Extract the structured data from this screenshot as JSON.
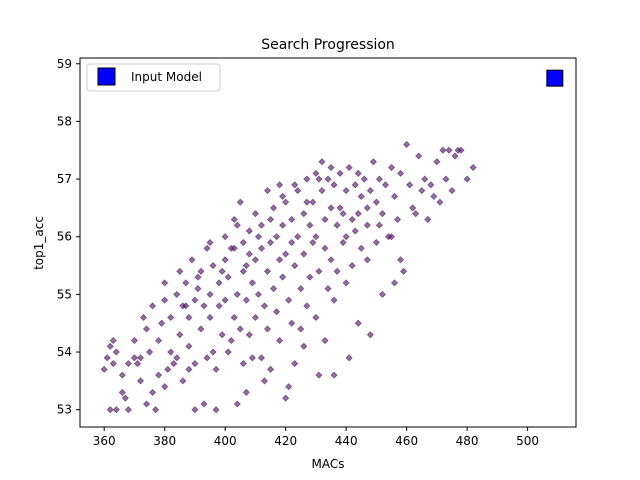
{
  "chart_data": {
    "type": "scatter",
    "title": "Search Progression",
    "xlabel": "MACs",
    "ylabel": "top1_acc",
    "xlim": [
      352,
      516
    ],
    "ylim": [
      52.7,
      59.1
    ],
    "xticks": [
      360,
      380,
      400,
      420,
      440,
      460,
      480,
      500
    ],
    "yticks": [
      53,
      54,
      55,
      56,
      57,
      58,
      59
    ],
    "grid": false,
    "legend_position": "top-left",
    "series": [
      {
        "name": "",
        "marker": "diamond",
        "color": "#4b0f5e",
        "alpha": 0.6,
        "points": [
          [
            360,
            53.7
          ],
          [
            361,
            53.9
          ],
          [
            362,
            54.1
          ],
          [
            363,
            53.8
          ],
          [
            364,
            54.0
          ],
          [
            362,
            53.0
          ],
          [
            364,
            53.0
          ],
          [
            366,
            53.3
          ],
          [
            368,
            53.0
          ],
          [
            366,
            53.6
          ],
          [
            368,
            53.8
          ],
          [
            370,
            53.9
          ],
          [
            370,
            54.2
          ],
          [
            372,
            53.5
          ],
          [
            372,
            53.9
          ],
          [
            374,
            54.4
          ],
          [
            374,
            53.1
          ],
          [
            376,
            53.3
          ],
          [
            376,
            54.8
          ],
          [
            375,
            54.0
          ],
          [
            377,
            53.0
          ],
          [
            378,
            53.6
          ],
          [
            378,
            54.2
          ],
          [
            380,
            53.4
          ],
          [
            380,
            54.9
          ],
          [
            380,
            55.2
          ],
          [
            382,
            54.0
          ],
          [
            382,
            54.6
          ],
          [
            383,
            53.8
          ],
          [
            384,
            55.0
          ],
          [
            385,
            54.3
          ],
          [
            385,
            55.4
          ],
          [
            386,
            53.5
          ],
          [
            386,
            54.8
          ],
          [
            387,
            55.2
          ],
          [
            388,
            54.1
          ],
          [
            388,
            54.6
          ],
          [
            389,
            55.6
          ],
          [
            390,
            53.8
          ],
          [
            390,
            54.9
          ],
          [
            390,
            53.0
          ],
          [
            391,
            55.1
          ],
          [
            392,
            54.4
          ],
          [
            392,
            55.4
          ],
          [
            393,
            53.1
          ],
          [
            394,
            53.9
          ],
          [
            394,
            55.8
          ],
          [
            395,
            54.6
          ],
          [
            395,
            55.0
          ],
          [
            396,
            54.0
          ],
          [
            396,
            55.5
          ],
          [
            397,
            53.0
          ],
          [
            398,
            54.8
          ],
          [
            398,
            55.2
          ],
          [
            399,
            54.3
          ],
          [
            400,
            55.6
          ],
          [
            400,
            54.9
          ],
          [
            400,
            56.0
          ],
          [
            401,
            55.3
          ],
          [
            402,
            54.2
          ],
          [
            402,
            55.8
          ],
          [
            403,
            56.3
          ],
          [
            403,
            54.6
          ],
          [
            404,
            55.0
          ],
          [
            404,
            56.2
          ],
          [
            405,
            54.4
          ],
          [
            405,
            56.6
          ],
          [
            406,
            53.8
          ],
          [
            406,
            55.4
          ],
          [
            406,
            55.9
          ],
          [
            407,
            54.9
          ],
          [
            407,
            53.3
          ],
          [
            408,
            55.7
          ],
          [
            408,
            56.1
          ],
          [
            408,
            54.3
          ],
          [
            409,
            55.2
          ],
          [
            410,
            54.6
          ],
          [
            410,
            55.6
          ],
          [
            410,
            56.4
          ],
          [
            411,
            55.0
          ],
          [
            412,
            53.9
          ],
          [
            412,
            55.8
          ],
          [
            412,
            56.2
          ],
          [
            413,
            54.8
          ],
          [
            414,
            55.4
          ],
          [
            414,
            56.8
          ],
          [
            414,
            54.4
          ],
          [
            415,
            55.9
          ],
          [
            415,
            53.7
          ],
          [
            416,
            55.1
          ],
          [
            416,
            56.5
          ],
          [
            417,
            54.7
          ],
          [
            417,
            56.0
          ],
          [
            418,
            55.6
          ],
          [
            418,
            56.9
          ],
          [
            418,
            54.2
          ],
          [
            419,
            55.3
          ],
          [
            419,
            56.2
          ],
          [
            420,
            53.2
          ],
          [
            420,
            55.7
          ],
          [
            420,
            56.6
          ],
          [
            421,
            54.9
          ],
          [
            421,
            53.4
          ],
          [
            422,
            55.9
          ],
          [
            422,
            56.3
          ],
          [
            422,
            54.5
          ],
          [
            423,
            55.5
          ],
          [
            424,
            56.0
          ],
          [
            424,
            56.8
          ],
          [
            425,
            55.1
          ],
          [
            425,
            54.4
          ],
          [
            426,
            56.4
          ],
          [
            426,
            55.7
          ],
          [
            427,
            57.0
          ],
          [
            427,
            54.8
          ],
          [
            428,
            56.2
          ],
          [
            428,
            55.3
          ],
          [
            429,
            56.6
          ],
          [
            429,
            55.9
          ],
          [
            430,
            57.1
          ],
          [
            430,
            54.6
          ],
          [
            430,
            56.0
          ],
          [
            431,
            55.4
          ],
          [
            431,
            53.6
          ],
          [
            432,
            56.8
          ],
          [
            432,
            57.3
          ],
          [
            433,
            55.8
          ],
          [
            433,
            56.3
          ],
          [
            434,
            55.1
          ],
          [
            434,
            57.0
          ],
          [
            435,
            56.5
          ],
          [
            435,
            55.6
          ],
          [
            436,
            56.9
          ],
          [
            436,
            54.9
          ],
          [
            437,
            56.2
          ],
          [
            437,
            55.4
          ],
          [
            438,
            57.1
          ],
          [
            438,
            56.5
          ],
          [
            439,
            55.9
          ],
          [
            440,
            56.8
          ],
          [
            440,
            56.0
          ],
          [
            440,
            55.2
          ],
          [
            441,
            57.2
          ],
          [
            442,
            56.3
          ],
          [
            442,
            55.5
          ],
          [
            443,
            56.9
          ],
          [
            444,
            56.4
          ],
          [
            444,
            57.1
          ],
          [
            445,
            55.8
          ],
          [
            445,
            56.7
          ],
          [
            446,
            57.0
          ],
          [
            447,
            56.2
          ],
          [
            447,
            55.6
          ],
          [
            448,
            56.8
          ],
          [
            449,
            57.3
          ],
          [
            450,
            56.6
          ],
          [
            450,
            55.9
          ],
          [
            451,
            57.0
          ],
          [
            452,
            56.4
          ],
          [
            453,
            56.9
          ],
          [
            454,
            56.0
          ],
          [
            455,
            57.2
          ],
          [
            456,
            56.7
          ],
          [
            457,
            56.3
          ],
          [
            458,
            57.1
          ],
          [
            459,
            55.4
          ],
          [
            460,
            57.6
          ],
          [
            461,
            56.9
          ],
          [
            462,
            56.5
          ],
          [
            464,
            57.4
          ],
          [
            465,
            56.8
          ],
          [
            466,
            57.0
          ],
          [
            467,
            56.3
          ],
          [
            468,
            56.9
          ],
          [
            470,
            57.3
          ],
          [
            471,
            56.6
          ],
          [
            472,
            57.5
          ],
          [
            473,
            57.0
          ],
          [
            474,
            57.5
          ],
          [
            475,
            56.8
          ],
          [
            476,
            57.4
          ],
          [
            477,
            57.5
          ],
          [
            478,
            57.5
          ],
          [
            480,
            57.0
          ],
          [
            482,
            57.2
          ],
          [
            384,
            53.9
          ],
          [
            388,
            53.7
          ],
          [
            393,
            54.8
          ],
          [
            397,
            53.7
          ],
          [
            401,
            54.0
          ],
          [
            404,
            53.1
          ],
          [
            409,
            53.9
          ],
          [
            413,
            53.5
          ],
          [
            423,
            53.8
          ],
          [
            426,
            54.1
          ],
          [
            433,
            54.2
          ],
          [
            436,
            53.6
          ],
          [
            441,
            53.9
          ],
          [
            444,
            54.5
          ],
          [
            448,
            54.3
          ],
          [
            452,
            55.0
          ],
          [
            456,
            55.2
          ],
          [
            458,
            55.6
          ],
          [
            363,
            54.2
          ],
          [
            367,
            53.2
          ],
          [
            371,
            53.8
          ],
          [
            373,
            54.6
          ],
          [
            379,
            54.5
          ],
          [
            381,
            53.7
          ],
          [
            387,
            54.8
          ],
          [
            391,
            55.3
          ],
          [
            395,
            55.9
          ],
          [
            399,
            55.4
          ],
          [
            403,
            55.8
          ],
          [
            407,
            55.5
          ],
          [
            411,
            56.0
          ],
          [
            415,
            56.3
          ],
          [
            419,
            56.7
          ],
          [
            423,
            56.9
          ],
          [
            427,
            56.6
          ],
          [
            431,
            57.0
          ],
          [
            435,
            57.2
          ],
          [
            439,
            56.4
          ],
          [
            443,
            56.1
          ],
          [
            447,
            56.5
          ],
          [
            451,
            56.2
          ],
          [
            455,
            56.0
          ],
          [
            463,
            56.4
          ],
          [
            469,
            56.7
          ]
        ]
      }
    ],
    "input_model": {
      "label": "Input Model",
      "x": 509,
      "y": 58.75,
      "marker": "square",
      "color": "#0000ff"
    }
  }
}
